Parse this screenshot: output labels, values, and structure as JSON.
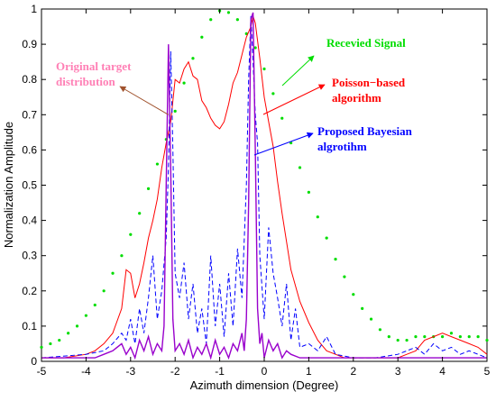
{
  "chart_data": {
    "type": "line",
    "title": "",
    "xlabel": "Azimuth dimension (Degree)",
    "ylabel": "Normalization Amplitude",
    "xlim": [
      -5,
      5
    ],
    "ylim": [
      0,
      1
    ],
    "xticks": [
      "-5",
      "-4",
      "-3",
      "-2",
      "-1",
      "0",
      "1",
      "2",
      "3",
      "4",
      "5"
    ],
    "yticks": [
      "0",
      "0.1",
      "0.2",
      "0.3",
      "0.4",
      "0.5",
      "0.6",
      "0.7",
      "0.8",
      "0.9",
      "1"
    ],
    "grid": false,
    "series": [
      {
        "key": "received",
        "color": "#00dd00",
        "style": "dots",
        "x": [
          -5,
          -4.8,
          -4.6,
          -4.4,
          -4.2,
          -4,
          -3.8,
          -3.6,
          -3.4,
          -3.2,
          -3,
          -2.8,
          -2.6,
          -2.4,
          -2.2,
          -2,
          -1.8,
          -1.6,
          -1.4,
          -1.2,
          -1,
          -0.8,
          -0.6,
          -0.4,
          -0.2,
          0,
          0.2,
          0.4,
          0.6,
          0.8,
          1,
          1.2,
          1.4,
          1.6,
          1.8,
          2,
          2.2,
          2.4,
          2.6,
          2.8,
          3,
          3.2,
          3.4,
          3.6,
          3.8,
          4,
          4.2,
          4.4,
          4.6,
          4.8,
          5
        ],
        "y": [
          0.04,
          0.05,
          0.06,
          0.08,
          0.1,
          0.13,
          0.16,
          0.2,
          0.25,
          0.3,
          0.36,
          0.42,
          0.49,
          0.56,
          0.63,
          0.71,
          0.79,
          0.86,
          0.92,
          0.97,
          0.995,
          0.99,
          0.97,
          0.93,
          0.89,
          0.83,
          0.76,
          0.69,
          0.62,
          0.55,
          0.48,
          0.41,
          0.35,
          0.29,
          0.24,
          0.19,
          0.15,
          0.12,
          0.09,
          0.07,
          0.06,
          0.06,
          0.07,
          0.07,
          0.07,
          0.07,
          0.08,
          0.07,
          0.07,
          0.07,
          0.06
        ]
      },
      {
        "key": "poisson",
        "color": "#ff0000",
        "style": "line",
        "x": [
          -5,
          -4.5,
          -4,
          -3.8,
          -3.6,
          -3.4,
          -3.2,
          -3.1,
          -3,
          -2.9,
          -2.8,
          -2.7,
          -2.6,
          -2.5,
          -2.4,
          -2.3,
          -2.2,
          -2.1,
          -2,
          -1.9,
          -1.8,
          -1.7,
          -1.6,
          -1.5,
          -1.4,
          -1.3,
          -1.2,
          -1.1,
          -1,
          -0.9,
          -0.8,
          -0.7,
          -0.6,
          -0.5,
          -0.4,
          -0.3,
          -0.25,
          -0.2,
          -0.1,
          0,
          0.1,
          0.2,
          0.3,
          0.4,
          0.5,
          0.6,
          0.8,
          1,
          1.2,
          1.4,
          1.6,
          1.8,
          2,
          2.5,
          3,
          3.2,
          3.4,
          3.6,
          3.8,
          4,
          4.2,
          4.4,
          4.6,
          4.8,
          5
        ],
        "y": [
          0.01,
          0.01,
          0.02,
          0.03,
          0.05,
          0.08,
          0.15,
          0.26,
          0.25,
          0.18,
          0.22,
          0.28,
          0.35,
          0.4,
          0.46,
          0.55,
          0.62,
          0.68,
          0.8,
          0.79,
          0.83,
          0.85,
          0.81,
          0.8,
          0.74,
          0.72,
          0.69,
          0.67,
          0.66,
          0.68,
          0.73,
          0.79,
          0.82,
          0.87,
          0.92,
          0.95,
          0.98,
          0.96,
          0.86,
          0.75,
          0.68,
          0.61,
          0.51,
          0.42,
          0.34,
          0.26,
          0.17,
          0.11,
          0.06,
          0.03,
          0.02,
          0.01,
          0.01,
          0.01,
          0.01,
          0.02,
          0.03,
          0.06,
          0.07,
          0.08,
          0.07,
          0.06,
          0.05,
          0.04,
          0.02
        ]
      },
      {
        "key": "bayesian",
        "color": "#0000ff",
        "style": "dashed",
        "x": [
          -5,
          -4,
          -3.6,
          -3.4,
          -3.2,
          -3.1,
          -3,
          -2.9,
          -2.8,
          -2.7,
          -2.6,
          -2.5,
          -2.4,
          -2.3,
          -2.2,
          -2.15,
          -2.1,
          -2.05,
          -2,
          -1.9,
          -1.8,
          -1.7,
          -1.6,
          -1.5,
          -1.4,
          -1.3,
          -1.2,
          -1.1,
          -1,
          -0.9,
          -0.8,
          -0.7,
          -0.6,
          -0.5,
          -0.4,
          -0.35,
          -0.3,
          -0.25,
          -0.2,
          -0.15,
          -0.1,
          0,
          0.1,
          0.2,
          0.3,
          0.4,
          0.5,
          0.6,
          0.7,
          0.8,
          1,
          1.2,
          1.4,
          1.6,
          2,
          2.5,
          3,
          3.2,
          3.4,
          3.6,
          3.8,
          4,
          4.2,
          4.4,
          4.6,
          5
        ],
        "y": [
          0.01,
          0.02,
          0.03,
          0.05,
          0.08,
          0.06,
          0.12,
          0.05,
          0.15,
          0.08,
          0.18,
          0.3,
          0.12,
          0.2,
          0.35,
          0.55,
          0.88,
          0.6,
          0.25,
          0.18,
          0.28,
          0.12,
          0.22,
          0.08,
          0.15,
          0.05,
          0.3,
          0.1,
          0.22,
          0.07,
          0.25,
          0.1,
          0.32,
          0.18,
          0.5,
          0.8,
          0.98,
          0.85,
          0.7,
          0.62,
          0.3,
          0.12,
          0.38,
          0.25,
          0.18,
          0.1,
          0.22,
          0.06,
          0.15,
          0.04,
          0.05,
          0.03,
          0.07,
          0.02,
          0.01,
          0.01,
          0.02,
          0.03,
          0.04,
          0.02,
          0.05,
          0.03,
          0.04,
          0.02,
          0.03,
          0.01
        ]
      },
      {
        "key": "original",
        "color": "#9900cc",
        "style": "line",
        "x": [
          -5,
          -4.5,
          -4,
          -3.8,
          -3.6,
          -3.4,
          -3.2,
          -3.1,
          -3,
          -2.9,
          -2.8,
          -2.7,
          -2.6,
          -2.5,
          -2.4,
          -2.3,
          -2.25,
          -2.2,
          -2.15,
          -2.1,
          -2.05,
          -2,
          -1.9,
          -1.8,
          -1.7,
          -1.6,
          -1.5,
          -1.4,
          -1.3,
          -1.2,
          -1.1,
          -1,
          -0.9,
          -0.8,
          -0.7,
          -0.6,
          -0.5,
          -0.45,
          -0.4,
          -0.35,
          -0.3,
          -0.25,
          -0.2,
          -0.15,
          -0.1,
          -0.05,
          0,
          0.1,
          0.2,
          0.3,
          0.4,
          0.5,
          0.6,
          0.8,
          1,
          1.5,
          2,
          3,
          4,
          5
        ],
        "y": [
          0.01,
          0.01,
          0.01,
          0.01,
          0.02,
          0.03,
          0.05,
          0.02,
          0.04,
          0.01,
          0.06,
          0.03,
          0.07,
          0.02,
          0.05,
          0.03,
          0.1,
          0.5,
          0.9,
          0.55,
          0.12,
          0.03,
          0.05,
          0.02,
          0.06,
          0.01,
          0.04,
          0.02,
          0.05,
          0.01,
          0.06,
          0.02,
          0.04,
          0.01,
          0.05,
          0.03,
          0.08,
          0.03,
          0.12,
          0.45,
          0.97,
          0.99,
          0.6,
          0.15,
          0.05,
          0.08,
          0.01,
          0.06,
          0.03,
          0.05,
          0.01,
          0.03,
          0.02,
          0.01,
          0.01,
          0.01,
          0.01,
          0.01,
          0.01,
          0.01
        ]
      }
    ],
    "annotations": [
      {
        "key": "original",
        "lines": [
          "Original target",
          "distribution"
        ],
        "color": "#ff7fb5",
        "arrow_color": "#a0522d",
        "anchor_x": -2.15,
        "anchor_y": 0.7
      },
      {
        "key": "received",
        "lines": [
          "Recevied Signal"
        ],
        "color": "#00dd00",
        "arrow_color": "#00dd00",
        "anchor_x": -0.55,
        "anchor_y": 0.78
      },
      {
        "key": "poisson",
        "lines": [
          "Poisson−based",
          "algorithm"
        ],
        "color": "#ff0000",
        "arrow_color": "#ff0000",
        "anchor_x": 0.15,
        "anchor_y": 0.7
      },
      {
        "key": "bayesian",
        "lines": [
          "Proposed Bayesian",
          "algrotihm"
        ],
        "color": "#0000ff",
        "arrow_color": "#0000ff",
        "anchor_x": -0.3,
        "anchor_y": 0.58
      }
    ]
  }
}
